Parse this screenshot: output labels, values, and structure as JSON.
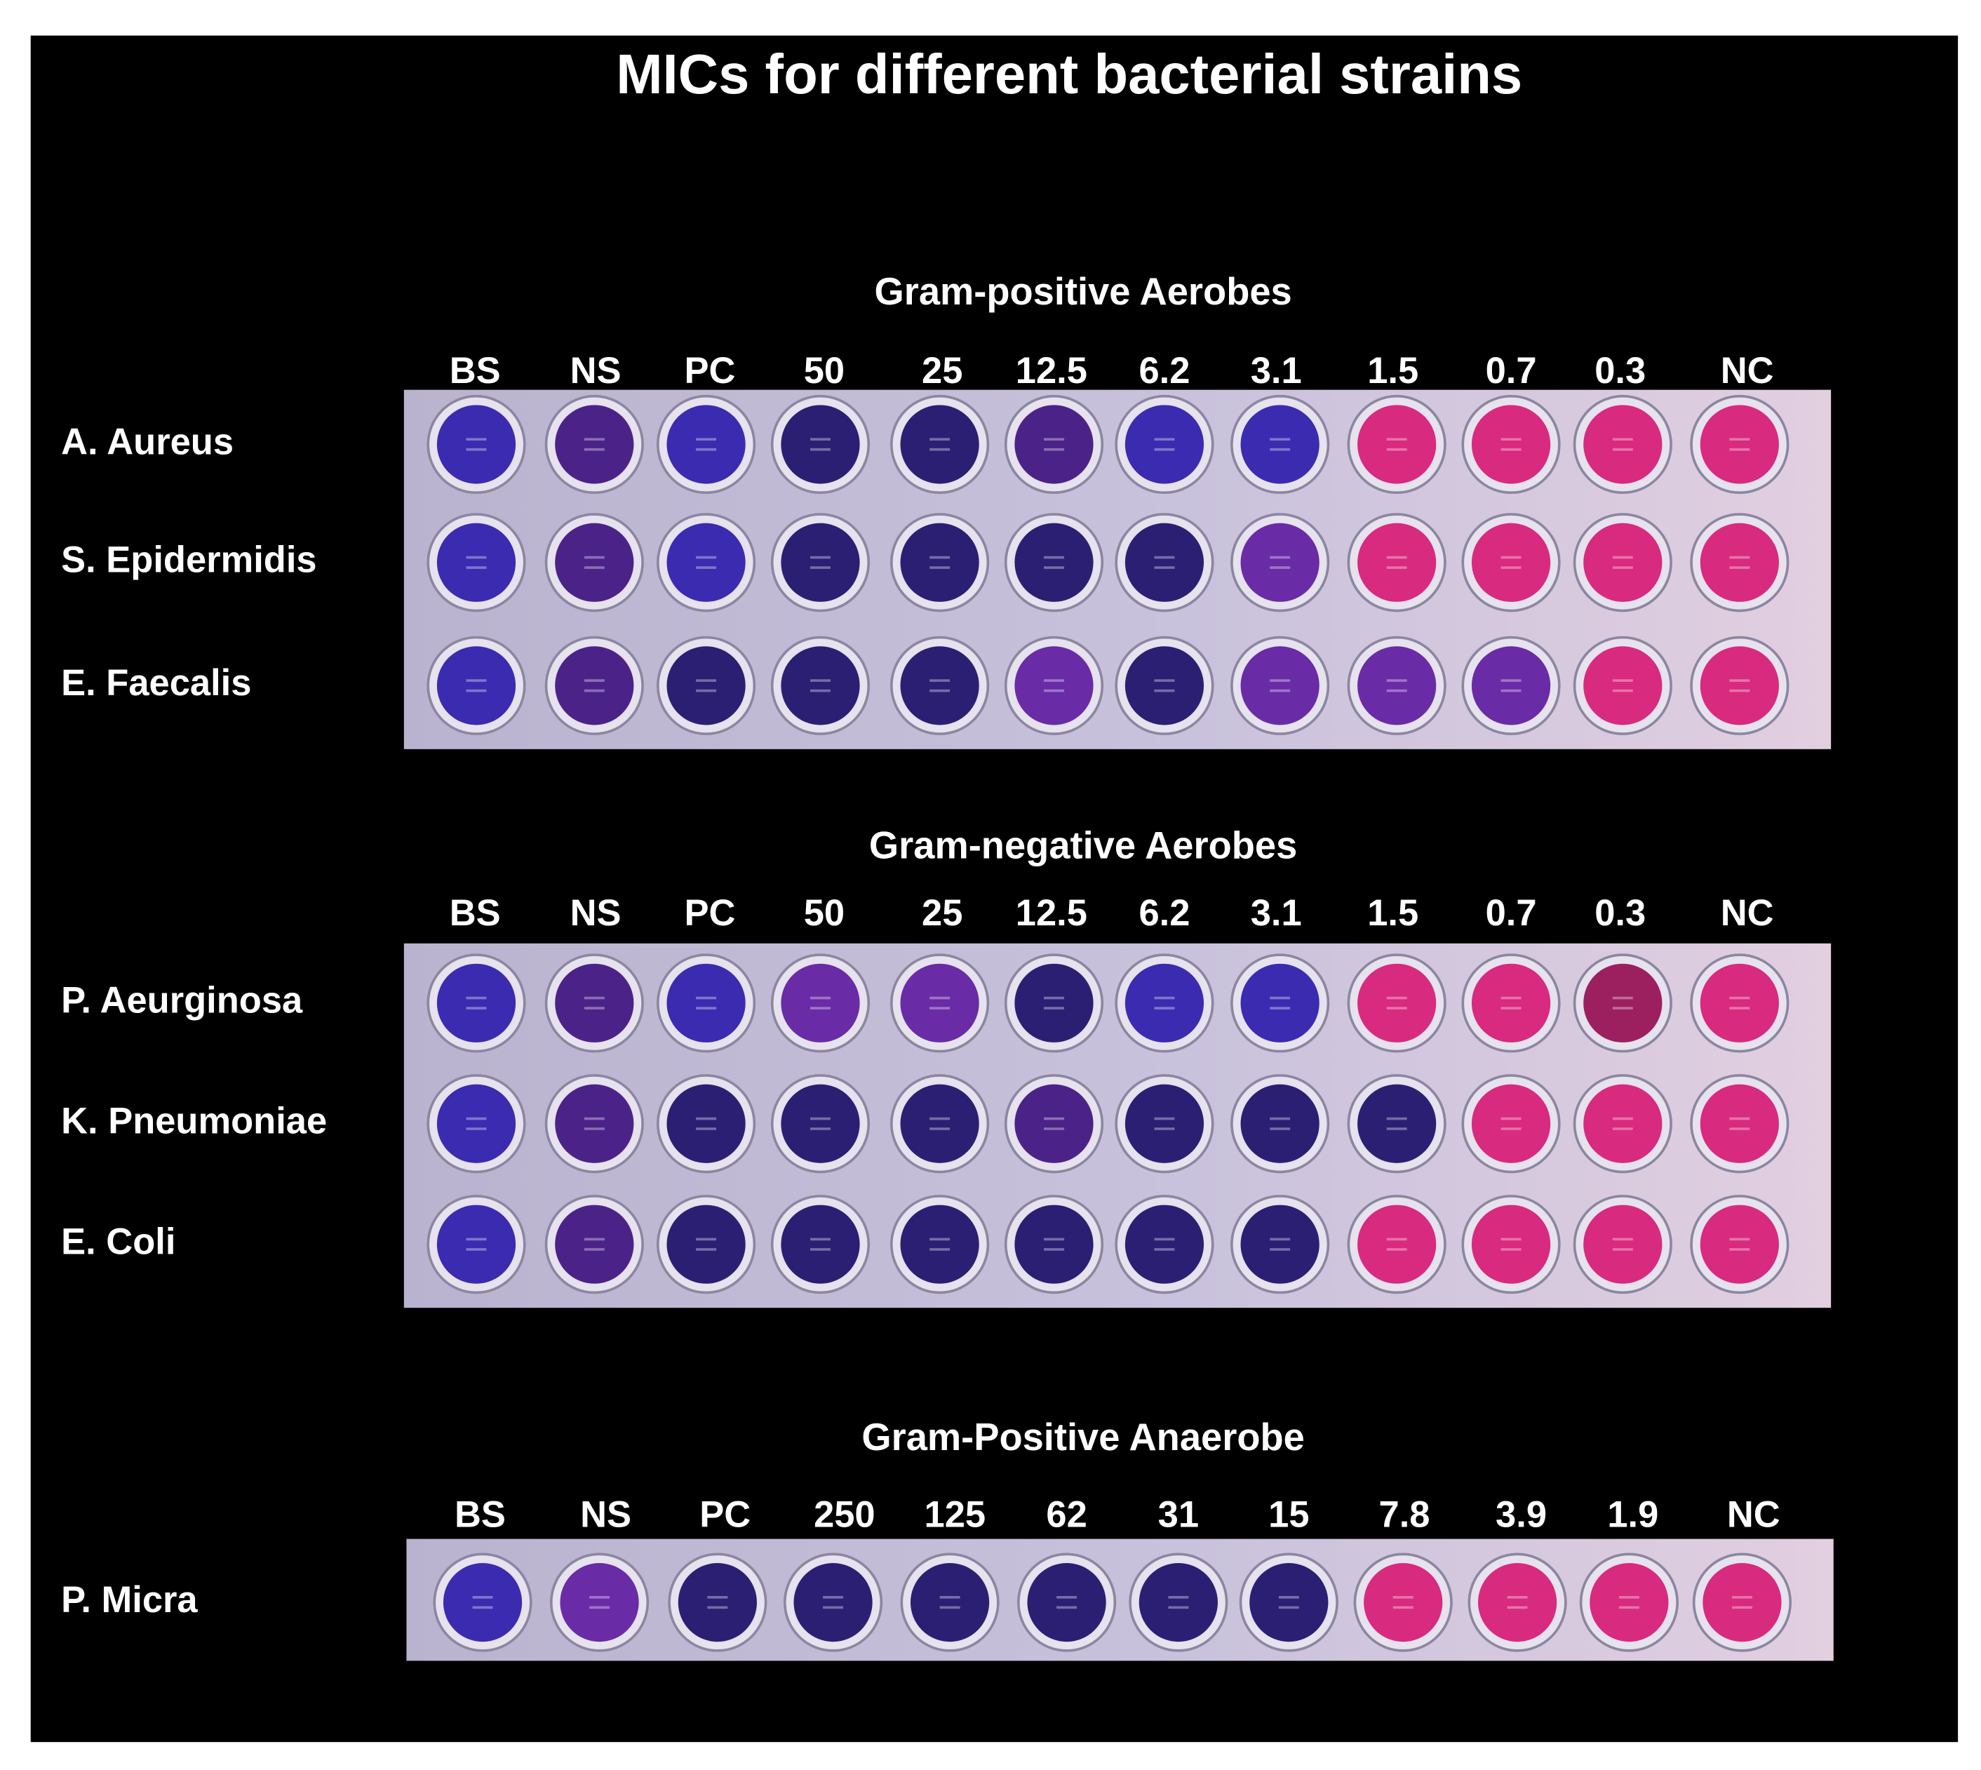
{
  "title": "MICs for different bacterial strains",
  "panels": [
    {
      "heading": "Gram-positive Aerobes",
      "columns": [
        "BS",
        "NS",
        "PC",
        "50",
        "25",
        "12.5",
        "6.2",
        "3.1",
        "1.5",
        "0.7",
        "0.3",
        "NC"
      ],
      "rows": [
        "A. Aureus",
        "S. Epidermidis",
        "E. Faecalis"
      ]
    },
    {
      "heading": "Gram-negative Aerobes",
      "columns": [
        "BS",
        "NS",
        "PC",
        "50",
        "25",
        "12.5",
        "6.2",
        "3.1",
        "1.5",
        "0.7",
        "0.3",
        "NC"
      ],
      "rows": [
        "P. Aeurginosa",
        "K. Pneumoniae",
        "E. Coli"
      ]
    },
    {
      "heading": "Gram-Positive Anaerobe",
      "columns": [
        "BS",
        "NS",
        "PC",
        "250",
        "125",
        "62",
        "31",
        "15",
        "7.8",
        "3.9",
        "1.9",
        "NC"
      ],
      "rows": [
        "P. Micra"
      ]
    }
  ]
}
